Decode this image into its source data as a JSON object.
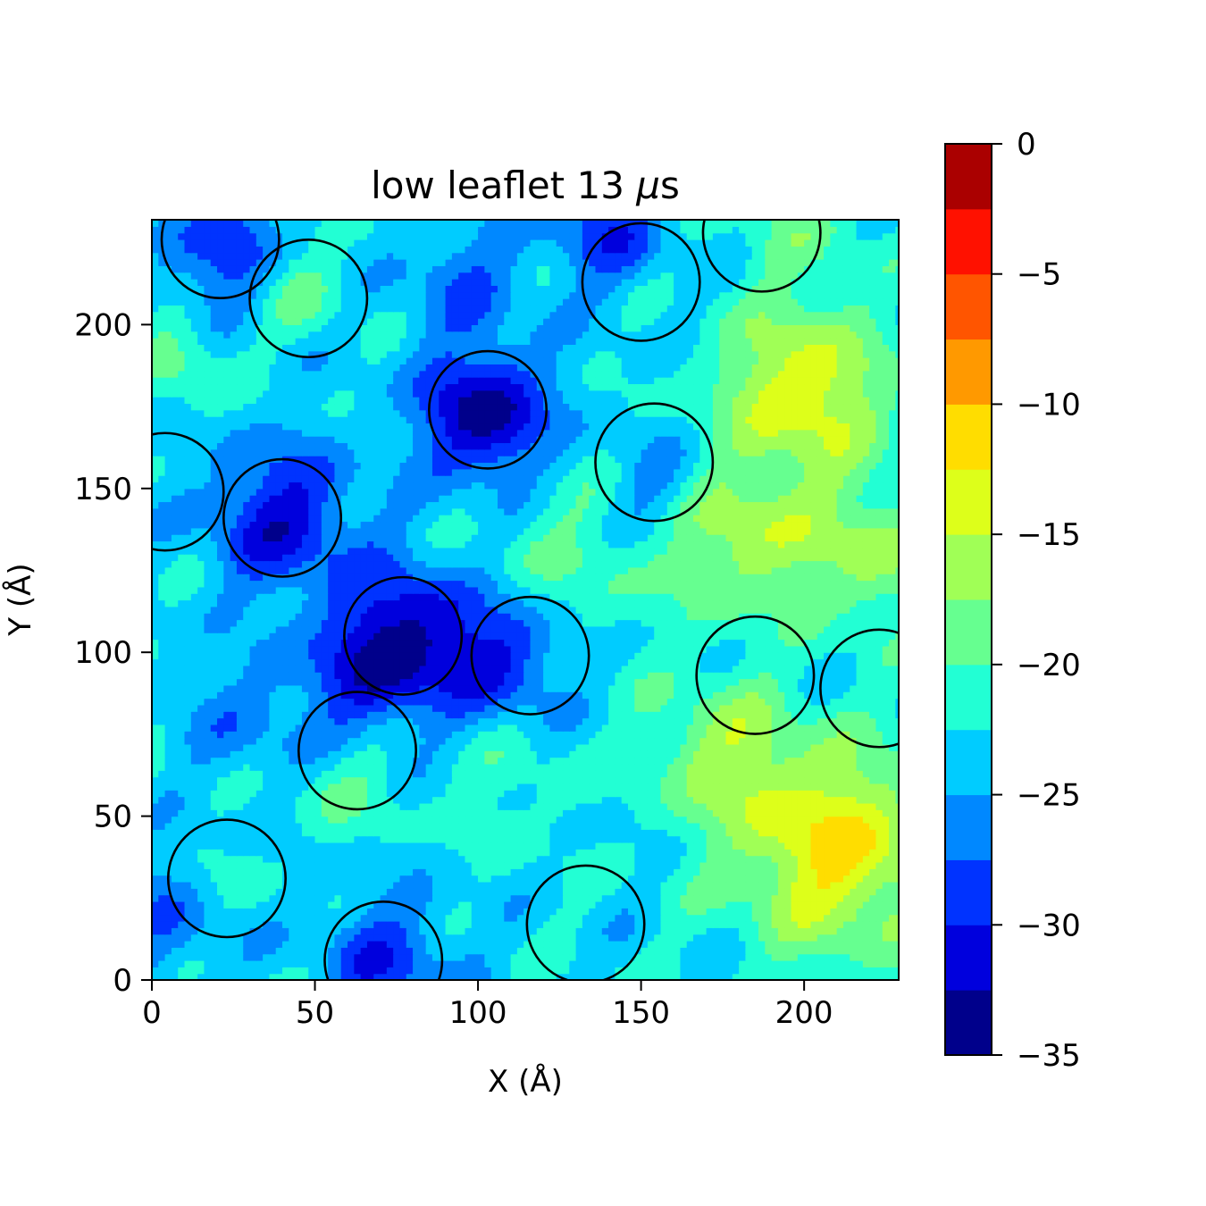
{
  "chart_data": {
    "type": "heatmap",
    "subtype": "filled-contour",
    "title_prefix": "low leaflet 13 ",
    "title_mu": "μ",
    "title_suffix": "s",
    "xlabel": "X (Å)",
    "ylabel": "Y (Å)",
    "xlim": [
      0,
      229
    ],
    "ylim": [
      0,
      232
    ],
    "xticks": [
      0,
      50,
      100,
      150,
      200
    ],
    "yticks": [
      0,
      50,
      100,
      150,
      200
    ],
    "colorbar": {
      "range": [
        -35,
        0
      ],
      "ticks": [
        0,
        -5,
        -10,
        -15,
        -20,
        -25,
        -30,
        -35
      ],
      "levels": [
        {
          "from": -35,
          "to": -32.5,
          "color": "#00008b"
        },
        {
          "from": -32.5,
          "to": -30,
          "color": "#0000dd"
        },
        {
          "from": -30,
          "to": -27.5,
          "color": "#0033ff"
        },
        {
          "from": -27.5,
          "to": -25,
          "color": "#0088ff"
        },
        {
          "from": -25,
          "to": -22.5,
          "color": "#00ccff"
        },
        {
          "from": -22.5,
          "to": -20,
          "color": "#22ffd4"
        },
        {
          "from": -20,
          "to": -17.5,
          "color": "#66ff90"
        },
        {
          "from": -17.5,
          "to": -15,
          "color": "#a0ff56"
        },
        {
          "from": -15,
          "to": -12.5,
          "color": "#ddff1a"
        },
        {
          "from": -12.5,
          "to": -10,
          "color": "#ffdd00"
        },
        {
          "from": -10,
          "to": -7.5,
          "color": "#ff9900"
        },
        {
          "from": -7.5,
          "to": -5,
          "color": "#ff5500"
        },
        {
          "from": -5,
          "to": -2.5,
          "color": "#ff1100"
        },
        {
          "from": -2.5,
          "to": 0,
          "color": "#aa0000"
        }
      ]
    },
    "field_background": -23,
    "field_features": [
      {
        "x": 102,
        "y": 172,
        "amp": -11,
        "sigma": 14
      },
      {
        "x": 40,
        "y": 141,
        "amp": -8,
        "sigma": 16
      },
      {
        "x": 78,
        "y": 106,
        "amp": -9,
        "sigma": 15
      },
      {
        "x": 108,
        "y": 98,
        "amp": -7,
        "sigma": 13
      },
      {
        "x": 65,
        "y": 90,
        "amp": -5,
        "sigma": 14
      },
      {
        "x": 22,
        "y": 222,
        "amp": -6,
        "sigma": 14
      },
      {
        "x": 140,
        "y": 228,
        "amp": -6,
        "sigma": 12
      },
      {
        "x": 95,
        "y": 215,
        "amp": -4,
        "sigma": 14
      },
      {
        "x": 155,
        "y": 150,
        "amp": -4,
        "sigma": 12
      },
      {
        "x": 72,
        "y": 5,
        "amp": -6,
        "sigma": 14
      },
      {
        "x": 5,
        "y": 20,
        "amp": -4,
        "sigma": 14
      },
      {
        "x": 30,
        "y": 80,
        "amp": -3,
        "sigma": 14
      },
      {
        "x": 200,
        "y": 180,
        "amp": 10,
        "sigma": 18
      },
      {
        "x": 210,
        "y": 40,
        "amp": 11,
        "sigma": 22
      },
      {
        "x": 180,
        "y": 135,
        "amp": 7,
        "sigma": 16
      },
      {
        "x": 175,
        "y": 70,
        "amp": 6,
        "sigma": 16
      },
      {
        "x": 220,
        "y": 130,
        "amp": 6,
        "sigma": 16
      },
      {
        "x": 45,
        "y": 212,
        "amp": 4,
        "sigma": 10
      },
      {
        "x": 10,
        "y": 190,
        "amp": 4,
        "sigma": 10
      },
      {
        "x": 130,
        "y": 130,
        "amp": 3,
        "sigma": 20
      },
      {
        "x": 110,
        "y": 60,
        "amp": 2,
        "sigma": 14
      },
      {
        "x": 22,
        "y": 30,
        "amp": 2,
        "sigma": 10
      },
      {
        "x": 60,
        "y": 60,
        "amp": 3,
        "sigma": 12
      },
      {
        "x": 200,
        "y": 230,
        "amp": 3,
        "sigma": 14
      }
    ],
    "circles": [
      {
        "x": 21,
        "y": 226,
        "r": 18
      },
      {
        "x": 48,
        "y": 208,
        "r": 18
      },
      {
        "x": 103,
        "y": 174,
        "r": 18
      },
      {
        "x": 150,
        "y": 213,
        "r": 18
      },
      {
        "x": 187,
        "y": 228,
        "r": 18
      },
      {
        "x": 154,
        "y": 158,
        "r": 18
      },
      {
        "x": 4,
        "y": 149,
        "r": 18
      },
      {
        "x": 40,
        "y": 141,
        "r": 18
      },
      {
        "x": 77,
        "y": 105,
        "r": 18
      },
      {
        "x": 116,
        "y": 99,
        "r": 18
      },
      {
        "x": 185,
        "y": 93,
        "r": 18
      },
      {
        "x": 223,
        "y": 89,
        "r": 18
      },
      {
        "x": 63,
        "y": 70,
        "r": 18
      },
      {
        "x": 23,
        "y": 31,
        "r": 18
      },
      {
        "x": 71,
        "y": 6,
        "r": 18
      },
      {
        "x": 133,
        "y": 17,
        "r": 18
      }
    ]
  }
}
